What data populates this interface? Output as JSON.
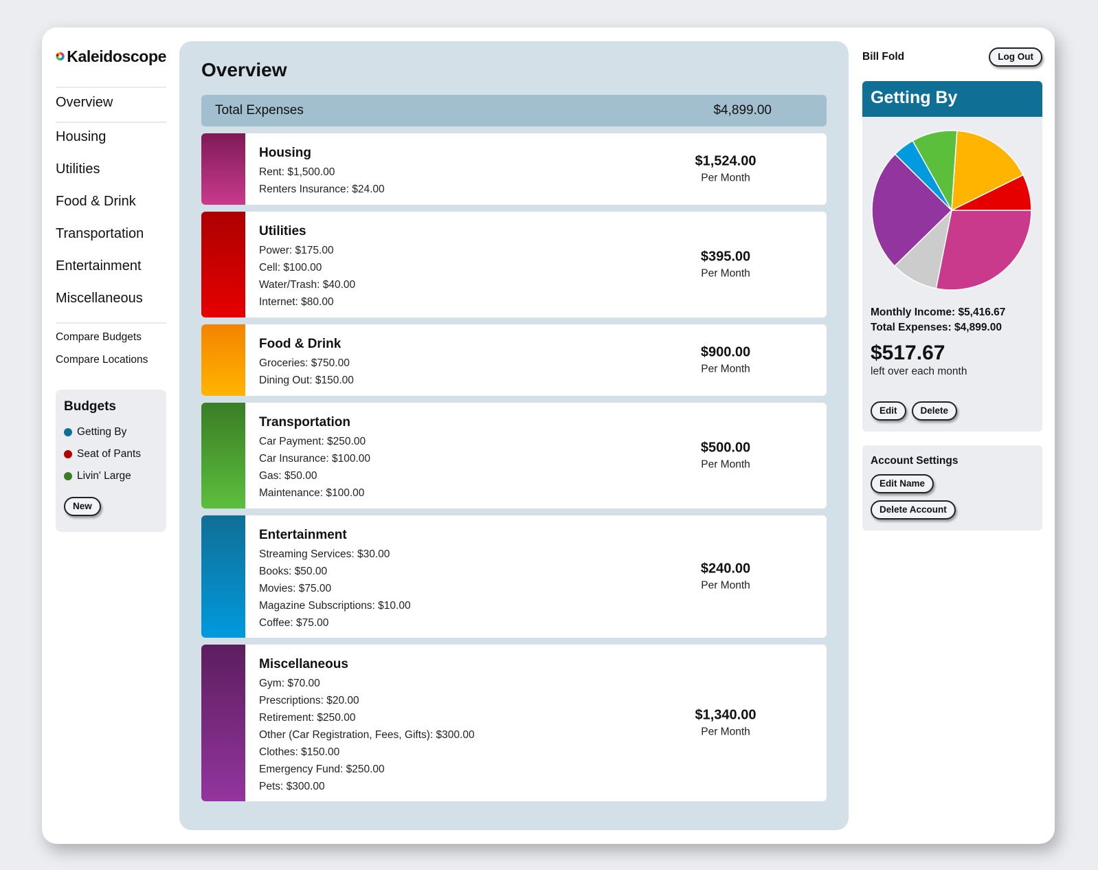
{
  "brand": {
    "name": "Kaleidoscope"
  },
  "nav": {
    "overview": "Overview",
    "categories": [
      "Housing",
      "Utilities",
      "Food & Drink",
      "Transportation",
      "Entertainment",
      "Miscellaneous"
    ],
    "compare_budgets": "Compare Budgets",
    "compare_locations": "Compare Locations"
  },
  "budgets": {
    "title": "Budgets",
    "items": [
      {
        "name": "Getting By",
        "color": "#106f95"
      },
      {
        "name": "Seat of Pants",
        "color": "#b30000"
      },
      {
        "name": "Livin' Large",
        "color": "#3a7d26"
      }
    ],
    "new_label": "New"
  },
  "main": {
    "title": "Overview",
    "total": {
      "label": "Total Expenses",
      "value": "$4,899.00"
    },
    "categories": [
      {
        "name": "Housing",
        "colors": [
          "#7e1b56",
          "#c93a8d"
        ],
        "lines": [
          "Rent: $1,500.00",
          "Renters Insurance: $24.00"
        ],
        "amount": "$1,524.00",
        "period": "Per Month"
      },
      {
        "name": "Utilities",
        "colors": [
          "#ad0000",
          "#e60000"
        ],
        "lines": [
          "Power: $175.00",
          "Cell: $100.00",
          "Water/Trash: $40.00",
          "Internet: $80.00"
        ],
        "amount": "$395.00",
        "period": "Per Month"
      },
      {
        "name": "Food & Drink",
        "colors": [
          "#f38400",
          "#ffb400"
        ],
        "lines": [
          "Groceries: $750.00",
          "Dining Out: $150.00"
        ],
        "amount": "$900.00",
        "period": "Per Month"
      },
      {
        "name": "Transportation",
        "colors": [
          "#3a7d26",
          "#5cbf3c"
        ],
        "lines": [
          "Car Payment: $250.00",
          "Car Insurance: $100.00",
          "Gas: $50.00",
          "Maintenance: $100.00"
        ],
        "amount": "$500.00",
        "period": "Per Month"
      },
      {
        "name": "Entertainment",
        "colors": [
          "#106f95",
          "#009ade"
        ],
        "lines": [
          "Streaming Services: $30.00",
          "Books: $50.00",
          "Movies: $75.00",
          "Magazine Subscriptions: $10.00",
          "Coffee: $75.00"
        ],
        "amount": "$240.00",
        "period": "Per Month"
      },
      {
        "name": "Miscellaneous",
        "colors": [
          "#5c1e5e",
          "#93359e"
        ],
        "lines": [
          "Gym: $70.00",
          "Prescriptions: $20.00",
          "Retirement: $250.00",
          "Other (Car Registration, Fees, Gifts): $300.00",
          "Clothes: $150.00",
          "Emergency Fund: $250.00",
          "Pets: $300.00"
        ],
        "amount": "$1,340.00",
        "period": "Per Month"
      }
    ]
  },
  "user": {
    "name": "Bill Fold",
    "logout_label": "Log Out"
  },
  "active_budget": {
    "title": "Getting By",
    "header_color": "#106f95",
    "income_line": "Monthly Income: $5,416.67",
    "expenses_line": "Total Expenses: $4,899.00",
    "left_over_amount": "$517.67",
    "left_over_label": "left over each month",
    "edit_label": "Edit",
    "delete_label": "Delete"
  },
  "chart_data": {
    "type": "pie",
    "slices": [
      {
        "label": "Housing",
        "value": 1524,
        "color": "#c93a8d"
      },
      {
        "label": "Remaining",
        "value": 517.67,
        "color": "#cccccc"
      },
      {
        "label": "Miscellaneous",
        "value": 1340,
        "color": "#93359e"
      },
      {
        "label": "Entertainment",
        "value": 240,
        "color": "#009ade"
      },
      {
        "label": "Transportation",
        "value": 500,
        "color": "#5cbf3c"
      },
      {
        "label": "Food & Drink",
        "value": 900,
        "color": "#ffb400"
      },
      {
        "label": "Utilities",
        "value": 395,
        "color": "#e60000"
      }
    ],
    "start_angle_deg": 90
  },
  "account_settings": {
    "title": "Account Settings",
    "edit_name_label": "Edit Name",
    "delete_account_label": "Delete Account"
  }
}
